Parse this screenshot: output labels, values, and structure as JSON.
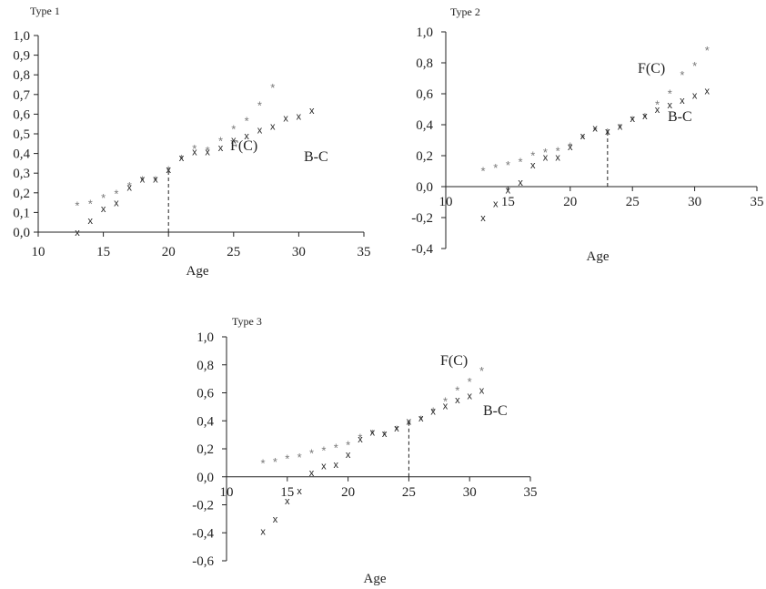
{
  "chart_data": [
    {
      "type": "scatter",
      "title": "Type 1",
      "xlabel": "Age",
      "ylabel": "",
      "xlim": [
        10,
        35
      ],
      "ylim": [
        0,
        1
      ],
      "xticks": [
        10,
        15,
        20,
        25,
        30,
        35
      ],
      "xtick_labels": [
        "10",
        "15",
        "20",
        "25",
        "30",
        "35"
      ],
      "yticks": [
        0,
        0.1,
        0.2,
        0.3,
        0.4,
        0.5,
        0.6,
        0.7,
        0.8,
        0.9,
        1.0
      ],
      "ytick_labels": [
        "0,0",
        "0,1",
        "0,2",
        "0,3",
        "0,4",
        "0,5",
        "0,6",
        "0,7",
        "0,8",
        "0,9",
        "1,0"
      ],
      "vline": {
        "x": 20,
        "y": 0.32
      },
      "series": [
        {
          "name": "F(C)",
          "marker": "*",
          "x": [
            13,
            14,
            15,
            16,
            17,
            18,
            19,
            20,
            21,
            22,
            23,
            24,
            25,
            26,
            27,
            28
          ],
          "y": [
            0.15,
            0.16,
            0.19,
            0.21,
            0.25,
            0.28,
            0.28,
            0.33,
            0.39,
            0.44,
            0.43,
            0.48,
            0.54,
            0.58,
            0.66,
            0.75
          ]
        },
        {
          "name": "B-C",
          "marker": "x",
          "x": [
            13,
            14,
            15,
            16,
            17,
            18,
            19,
            20,
            21,
            22,
            23,
            24,
            25,
            26,
            27,
            28,
            29,
            30,
            31
          ],
          "y": [
            0.0,
            0.06,
            0.12,
            0.15,
            0.23,
            0.27,
            0.27,
            0.32,
            0.38,
            0.41,
            0.41,
            0.43,
            0.47,
            0.49,
            0.52,
            0.54,
            0.58,
            0.59,
            0.62
          ]
        }
      ],
      "annotations": [
        "F(C)",
        "B-C"
      ]
    },
    {
      "type": "scatter",
      "title": "Type 2",
      "xlabel": "Age",
      "ylabel": "",
      "xlim": [
        10,
        35
      ],
      "ylim": [
        -0.4,
        1.0
      ],
      "xticks": [
        10,
        15,
        20,
        25,
        30,
        35
      ],
      "xtick_labels": [
        "10",
        "15",
        "20",
        "25",
        "30",
        "35"
      ],
      "yticks": [
        -0.4,
        -0.2,
        0.0,
        0.2,
        0.4,
        0.6,
        0.8,
        1.0
      ],
      "ytick_labels": [
        "-0,4",
        "-0,2",
        "0,0",
        "0,2",
        "0,4",
        "0,6",
        "0,8",
        "1,0"
      ],
      "vline": {
        "x": 23,
        "y": 0.36
      },
      "series": [
        {
          "name": "F(C)",
          "marker": "*",
          "x": [
            13,
            14,
            15,
            16,
            17,
            18,
            19,
            20,
            21,
            22,
            23,
            24,
            25,
            26,
            27,
            28,
            29,
            30,
            31
          ],
          "y": [
            0.12,
            0.14,
            0.16,
            0.18,
            0.22,
            0.24,
            0.25,
            0.28,
            0.33,
            0.38,
            0.37,
            0.4,
            0.45,
            0.47,
            0.55,
            0.62,
            0.74,
            0.8,
            0.9
          ]
        },
        {
          "name": "B-C",
          "marker": "x",
          "x": [
            13,
            14,
            15,
            16,
            17,
            18,
            19,
            20,
            21,
            22,
            23,
            24,
            25,
            26,
            27,
            28,
            29,
            30,
            31
          ],
          "y": [
            -0.2,
            -0.11,
            -0.02,
            0.03,
            0.14,
            0.19,
            0.19,
            0.26,
            0.33,
            0.38,
            0.36,
            0.39,
            0.44,
            0.46,
            0.5,
            0.53,
            0.56,
            0.59,
            0.62
          ]
        }
      ],
      "annotations": [
        "F(C)",
        "B-C"
      ]
    },
    {
      "type": "scatter",
      "title": "Type 3",
      "xlabel": "Age",
      "ylabel": "",
      "xlim": [
        10,
        35
      ],
      "ylim": [
        -0.6,
        1.0
      ],
      "xticks": [
        10,
        15,
        20,
        25,
        30,
        35
      ],
      "xtick_labels": [
        "10",
        "15",
        "20",
        "25",
        "30",
        "35"
      ],
      "yticks": [
        -0.6,
        -0.4,
        -0.2,
        0.0,
        0.2,
        0.4,
        0.6,
        0.8,
        1.0
      ],
      "ytick_labels": [
        "-0,6",
        "-0,4",
        "-0,2",
        "0,0",
        "0,2",
        "0,4",
        "0,6",
        "0,8",
        "1,0"
      ],
      "vline": {
        "x": 25,
        "y": 0.4
      },
      "series": [
        {
          "name": "F(C)",
          "marker": "*",
          "x": [
            13,
            14,
            15,
            16,
            17,
            18,
            19,
            20,
            21,
            22,
            23,
            24,
            25,
            26,
            27,
            28,
            29,
            30,
            31
          ],
          "y": [
            0.12,
            0.13,
            0.15,
            0.16,
            0.19,
            0.21,
            0.23,
            0.25,
            0.3,
            0.33,
            0.32,
            0.36,
            0.4,
            0.43,
            0.49,
            0.56,
            0.64,
            0.7,
            0.78
          ]
        },
        {
          "name": "B-C",
          "marker": "x",
          "x": [
            13,
            14,
            15,
            16,
            17,
            18,
            19,
            20,
            21,
            22,
            23,
            24,
            25,
            26,
            27,
            28,
            29,
            30,
            31
          ],
          "y": [
            -0.39,
            -0.3,
            -0.17,
            -0.1,
            0.03,
            0.08,
            0.09,
            0.16,
            0.27,
            0.32,
            0.31,
            0.35,
            0.4,
            0.42,
            0.47,
            0.51,
            0.55,
            0.58,
            0.62
          ]
        }
      ],
      "annotations": [
        "F(C)",
        "B-C"
      ]
    }
  ]
}
